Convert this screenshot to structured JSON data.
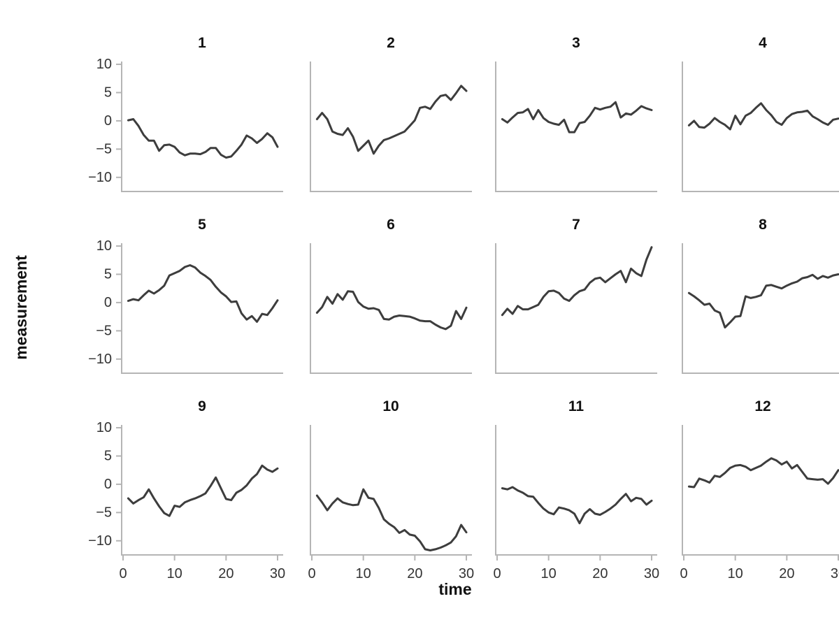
{
  "figure": {
    "x_axis_label": "time",
    "y_axis_label": "measurement",
    "colors": {
      "line": "#3d3d3d",
      "spine": "#b5b5b5",
      "tick_text": "#333333",
      "title_text": "#111111",
      "background": "#ffffff"
    }
  },
  "chart_data": {
    "type": "line",
    "layout": "facet-grid",
    "facet_rows": 3,
    "facet_cols": 4,
    "xlabel": "time",
    "ylabel": "measurement",
    "xlim": [
      0,
      30
    ],
    "ylim": [
      -12.5,
      10.5
    ],
    "x_ticks": [
      0,
      10,
      20,
      30
    ],
    "y_ticks": [
      10,
      5,
      0,
      -5,
      -10
    ],
    "y_tick_labels": [
      "10",
      "5",
      "0",
      "−5",
      "−10"
    ],
    "x": [
      1,
      2,
      3,
      4,
      5,
      6,
      7,
      8,
      9,
      10,
      11,
      12,
      13,
      14,
      15,
      16,
      17,
      18,
      19,
      20,
      21,
      22,
      23,
      24,
      25,
      26,
      27,
      28,
      29,
      30
    ],
    "grid": false,
    "legend": "none",
    "panels": [
      {
        "title": "1",
        "values": [
          0.1,
          0.3,
          -0.9,
          -2.5,
          -3.5,
          -3.5,
          -5.3,
          -4.3,
          -4.2,
          -4.6,
          -5.6,
          -6.1,
          -5.8,
          -5.8,
          -5.9,
          -5.5,
          -4.8,
          -4.8,
          -6.0,
          -6.5,
          -6.3,
          -5.3,
          -4.2,
          -2.6,
          -3.1,
          -3.9,
          -3.2,
          -2.2,
          -2.9,
          -4.6
        ]
      },
      {
        "title": "2",
        "values": [
          0.3,
          1.4,
          0.3,
          -1.9,
          -2.3,
          -2.5,
          -1.3,
          -2.8,
          -5.3,
          -4.4,
          -3.5,
          -5.8,
          -4.4,
          -3.4,
          -3.1,
          -2.7,
          -2.3,
          -1.9,
          -0.9,
          0.1,
          2.3,
          2.5,
          2.1,
          3.4,
          4.4,
          4.6,
          3.7,
          4.9,
          6.2,
          5.3
        ]
      },
      {
        "title": "3",
        "values": [
          0.3,
          -0.3,
          0.6,
          1.4,
          1.5,
          2.1,
          0.3,
          1.9,
          0.5,
          -0.2,
          -0.5,
          -0.7,
          0.2,
          -2.0,
          -2.0,
          -0.4,
          -0.2,
          0.9,
          2.3,
          2.0,
          2.3,
          2.5,
          3.3,
          0.6,
          1.3,
          1.1,
          1.8,
          2.6,
          2.2,
          1.9
        ]
      },
      {
        "title": "4",
        "values": [
          -0.8,
          0.0,
          -1.1,
          -1.2,
          -0.5,
          0.5,
          -0.2,
          -0.7,
          -1.5,
          0.9,
          -0.6,
          0.9,
          1.4,
          2.3,
          3.1,
          1.9,
          1.0,
          -0.2,
          -0.7,
          0.5,
          1.2,
          1.5,
          1.6,
          1.8,
          0.8,
          0.3,
          -0.3,
          -0.7,
          0.2,
          0.4
        ]
      },
      {
        "title": "5",
        "values": [
          0.3,
          0.6,
          0.4,
          1.3,
          2.1,
          1.6,
          2.2,
          3.0,
          4.8,
          5.2,
          5.6,
          6.3,
          6.6,
          6.2,
          5.3,
          4.7,
          4.0,
          2.8,
          1.8,
          1.1,
          0.1,
          0.2,
          -1.9,
          -3.0,
          -2.4,
          -3.4,
          -2.0,
          -2.2,
          -1.0,
          0.4
        ]
      },
      {
        "title": "6",
        "values": [
          -1.8,
          -0.8,
          1.0,
          -0.2,
          1.5,
          0.5,
          2.0,
          1.9,
          0.1,
          -0.7,
          -1.1,
          -1.0,
          -1.3,
          -2.9,
          -3.0,
          -2.5,
          -2.3,
          -2.4,
          -2.5,
          -2.8,
          -3.2,
          -3.3,
          -3.3,
          -3.9,
          -4.4,
          -4.7,
          -4.1,
          -1.5,
          -2.9,
          -0.9
        ]
      },
      {
        "title": "7",
        "values": [
          -2.2,
          -1.1,
          -2.0,
          -0.6,
          -1.2,
          -1.2,
          -0.8,
          -0.4,
          1.0,
          2.0,
          2.1,
          1.7,
          0.7,
          0.3,
          1.3,
          2.0,
          2.3,
          3.5,
          4.2,
          4.4,
          3.6,
          4.3,
          5.0,
          5.6,
          3.6,
          6.0,
          5.2,
          4.7,
          7.6,
          9.8
        ]
      },
      {
        "title": "8",
        "values": [
          1.7,
          1.1,
          0.4,
          -0.4,
          -0.2,
          -1.4,
          -1.8,
          -4.4,
          -3.5,
          -2.5,
          -2.4,
          1.1,
          0.8,
          1.0,
          1.3,
          3.0,
          3.1,
          2.8,
          2.5,
          3.0,
          3.4,
          3.7,
          4.3,
          4.5,
          4.9,
          4.2,
          4.7,
          4.4,
          4.8,
          5.0
        ]
      },
      {
        "title": "9",
        "values": [
          -2.5,
          -3.4,
          -2.8,
          -2.3,
          -0.9,
          -2.5,
          -3.9,
          -5.1,
          -5.6,
          -3.8,
          -4.0,
          -3.2,
          -2.8,
          -2.5,
          -2.1,
          -1.6,
          -0.3,
          1.2,
          -0.7,
          -2.6,
          -2.8,
          -1.5,
          -1.0,
          -0.2,
          1.0,
          1.8,
          3.3,
          2.6,
          2.2,
          2.8
        ]
      },
      {
        "title": "10",
        "values": [
          -2.0,
          -3.2,
          -4.6,
          -3.4,
          -2.5,
          -3.2,
          -3.5,
          -3.7,
          -3.6,
          -0.9,
          -2.4,
          -2.6,
          -4.2,
          -6.2,
          -7.0,
          -7.6,
          -8.6,
          -8.1,
          -8.9,
          -9.1,
          -10.1,
          -11.5,
          -11.7,
          -11.5,
          -11.2,
          -10.8,
          -10.3,
          -9.2,
          -7.2,
          -8.5
        ]
      },
      {
        "title": "11",
        "values": [
          -0.7,
          -0.9,
          -0.5,
          -1.1,
          -1.5,
          -2.1,
          -2.2,
          -3.3,
          -4.3,
          -5.0,
          -5.3,
          -4.1,
          -4.3,
          -4.6,
          -5.2,
          -6.9,
          -5.2,
          -4.4,
          -5.2,
          -5.4,
          -4.9,
          -4.3,
          -3.6,
          -2.6,
          -1.7,
          -3.0,
          -2.4,
          -2.6,
          -3.6,
          -2.9
        ]
      },
      {
        "title": "12",
        "values": [
          -0.4,
          -0.5,
          1.0,
          0.7,
          0.3,
          1.5,
          1.3,
          2.0,
          2.9,
          3.3,
          3.4,
          3.1,
          2.5,
          2.9,
          3.3,
          4.0,
          4.6,
          4.2,
          3.5,
          4.0,
          2.8,
          3.4,
          2.2,
          1.0,
          0.9,
          0.8,
          0.9,
          0.1,
          1.1,
          2.5
        ]
      }
    ]
  }
}
